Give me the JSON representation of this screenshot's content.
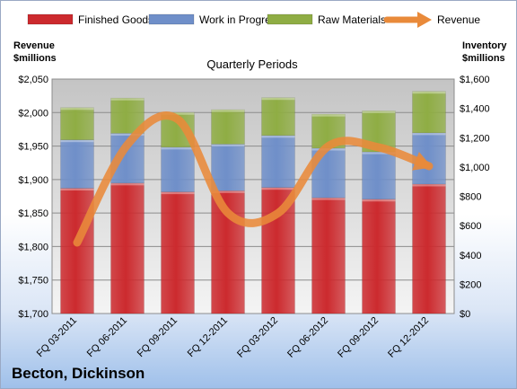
{
  "company": "Becton, Dickinson",
  "chart_data": {
    "type": "bar",
    "stacked": true,
    "title": "Quarterly Periods",
    "categories": [
      "FQ 03-2011",
      "FQ 06-2011",
      "FQ 09-2011",
      "FQ 12-2011",
      "FQ 03-2012",
      "FQ 06-2012",
      "FQ 09-2012",
      "FQ 12-2012"
    ],
    "series": [
      {
        "name": "Finished Goods",
        "color": "#cc2a2e",
        "axis": "right",
        "values": [
          855,
          890,
          830,
          838,
          860,
          790,
          780,
          883
        ]
      },
      {
        "name": "Work in Progress",
        "color": "#6f8fc9",
        "axis": "right",
        "values": [
          330,
          340,
          305,
          318,
          355,
          338,
          323,
          350
        ]
      },
      {
        "name": "Raw Materials",
        "color": "#8fad44",
        "axis": "right",
        "values": [
          220,
          240,
          237,
          235,
          258,
          232,
          280,
          283
        ]
      }
    ],
    "line_series": {
      "name": "Revenue",
      "color": "#e98a3a",
      "axis": "left",
      "values": [
        1806,
        1952,
        1990,
        1850,
        1850,
        1950,
        1948,
        1920
      ]
    },
    "left_axis": {
      "label": [
        "Revenue",
        "$millions"
      ],
      "min": 1700,
      "max": 2050,
      "ticks": [
        "$1,700",
        "$1,750",
        "$1,800",
        "$1,850",
        "$1,900",
        "$1,950",
        "$2,000",
        "$2,050"
      ]
    },
    "right_axis": {
      "label": [
        "Inventory",
        "$millions"
      ],
      "min": 0,
      "max": 1600,
      "ticks": [
        "$0",
        "$200",
        "$400",
        "$600",
        "$800",
        "$1,000",
        "$1,200",
        "$1,400",
        "$1,600"
      ]
    },
    "legend_position": "top",
    "grid": true
  }
}
